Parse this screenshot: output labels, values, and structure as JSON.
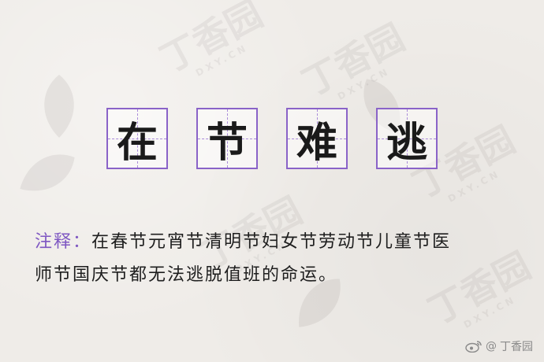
{
  "title_chars": [
    "在",
    "节",
    "难",
    "逃"
  ],
  "note": {
    "label": "注释：",
    "line1": "在春节元宵节清明节妇女节劳动节儿童节医",
    "line2": "师节国庆节都无法逃脱值班的命运。"
  },
  "watermark": {
    "text": "丁香园",
    "sub": "DXY.CN"
  },
  "footer": {
    "prefix": "@",
    "author": "丁香园",
    "icon": "weibo-icon"
  },
  "colors": {
    "accent": "#8a63c8",
    "label": "#7e57c2",
    "background": "#efece8"
  }
}
